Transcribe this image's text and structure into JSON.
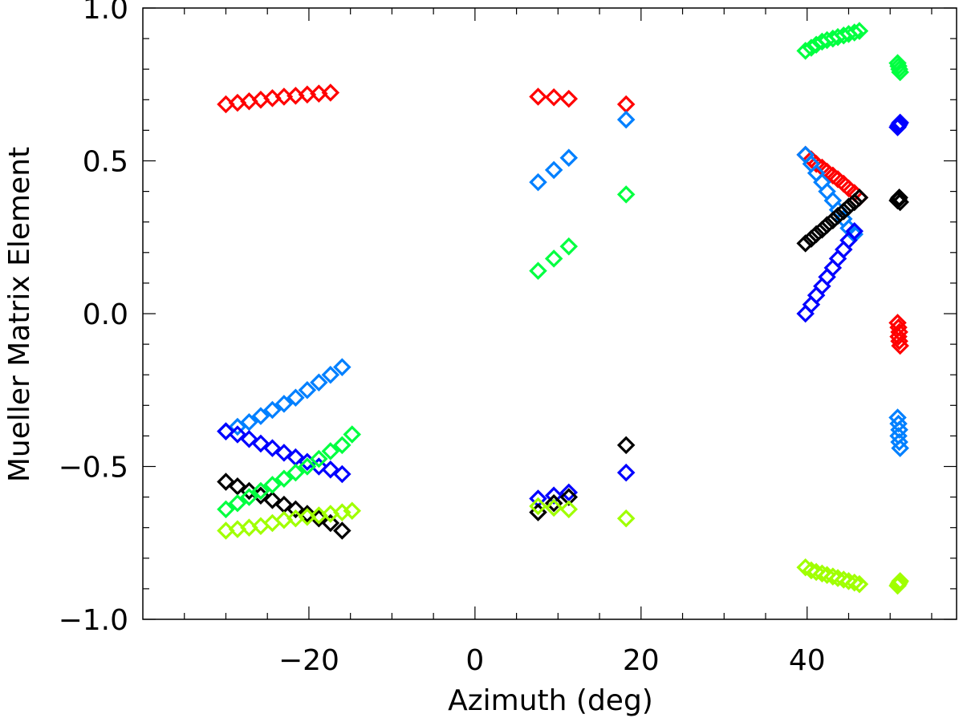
{
  "chart_data": {
    "type": "scatter",
    "title": "",
    "xlabel": "Azimuth (deg)",
    "ylabel": "Mueller Matrix Element",
    "xlim": [
      -40,
      58
    ],
    "ylim": [
      -1.0,
      1.0
    ],
    "x_ticks": [
      -20,
      0,
      20,
      40
    ],
    "x_tick_labels": [
      "−20",
      "0",
      "20",
      "40"
    ],
    "y_ticks": [
      -1.0,
      -0.5,
      0.0,
      0.5,
      1.0
    ],
    "y_tick_labels": [
      "−1.0",
      "−0.5",
      "0.0",
      "0.5",
      "1.0"
    ],
    "marker": "diamond-open",
    "grid": false,
    "legend": "none",
    "series": [
      {
        "color": "#ff0000",
        "points": [
          [
            -30,
            0.685
          ],
          [
            -28.6,
            0.69
          ],
          [
            -27.2,
            0.695
          ],
          [
            -25.8,
            0.7
          ],
          [
            -24.4,
            0.705
          ],
          [
            -23,
            0.71
          ],
          [
            -21.6,
            0.713
          ],
          [
            -20.2,
            0.717
          ],
          [
            -18.8,
            0.72
          ],
          [
            -17.4,
            0.723
          ],
          [
            7.6,
            0.71
          ],
          [
            9.5,
            0.708
          ],
          [
            11.3,
            0.703
          ],
          [
            18.2,
            0.685
          ],
          [
            39.8,
            0.52
          ],
          [
            40.5,
            0.505
          ],
          [
            41.1,
            0.49
          ],
          [
            41.8,
            0.478
          ],
          [
            42.4,
            0.465
          ],
          [
            43.1,
            0.452
          ],
          [
            43.7,
            0.44
          ],
          [
            44.4,
            0.425
          ],
          [
            45.0,
            0.41
          ],
          [
            45.7,
            0.395
          ],
          [
            46.3,
            0.38
          ],
          [
            50.9,
            -0.03
          ],
          [
            51.0,
            -0.045
          ],
          [
            51.1,
            -0.06
          ],
          [
            51.0,
            -0.075
          ],
          [
            51.1,
            -0.09
          ],
          [
            51.2,
            -0.105
          ]
        ]
      },
      {
        "color": "#0080ff",
        "points": [
          [
            -30,
            -0.385
          ],
          [
            -28.6,
            -0.37
          ],
          [
            -27.2,
            -0.355
          ],
          [
            -25.8,
            -0.335
          ],
          [
            -24.4,
            -0.315
          ],
          [
            -23,
            -0.295
          ],
          [
            -21.6,
            -0.275
          ],
          [
            -20.2,
            -0.25
          ],
          [
            -18.8,
            -0.225
          ],
          [
            -17.4,
            -0.2
          ],
          [
            -16,
            -0.175
          ],
          [
            7.6,
            0.43
          ],
          [
            9.5,
            0.47
          ],
          [
            11.3,
            0.51
          ],
          [
            18.2,
            0.635
          ],
          [
            39.8,
            0.52
          ],
          [
            40.5,
            0.49
          ],
          [
            41.1,
            0.46
          ],
          [
            41.8,
            0.43
          ],
          [
            42.4,
            0.4
          ],
          [
            43.1,
            0.37
          ],
          [
            43.7,
            0.34
          ],
          [
            44.4,
            0.31
          ],
          [
            45.0,
            0.28
          ],
          [
            45.7,
            0.26
          ],
          [
            50.9,
            -0.34
          ],
          [
            51.0,
            -0.36
          ],
          [
            51.1,
            -0.38
          ],
          [
            51.0,
            -0.4
          ],
          [
            51.1,
            -0.42
          ],
          [
            51.2,
            -0.44
          ]
        ]
      },
      {
        "color": "#0000ff",
        "points": [
          [
            -30,
            -0.385
          ],
          [
            -28.6,
            -0.395
          ],
          [
            -27.2,
            -0.41
          ],
          [
            -25.8,
            -0.425
          ],
          [
            -24.4,
            -0.44
          ],
          [
            -23,
            -0.455
          ],
          [
            -21.6,
            -0.47
          ],
          [
            -20.2,
            -0.485
          ],
          [
            -18.8,
            -0.5
          ],
          [
            -17.4,
            -0.51
          ],
          [
            -16,
            -0.525
          ],
          [
            7.6,
            -0.605
          ],
          [
            9.5,
            -0.595
          ],
          [
            11.3,
            -0.585
          ],
          [
            18.2,
            -0.52
          ],
          [
            39.8,
            0.0
          ],
          [
            40.5,
            0.03
          ],
          [
            41.1,
            0.06
          ],
          [
            41.8,
            0.09
          ],
          [
            42.4,
            0.12
          ],
          [
            43.1,
            0.15
          ],
          [
            43.7,
            0.18
          ],
          [
            44.4,
            0.21
          ],
          [
            45.0,
            0.24
          ],
          [
            45.7,
            0.27
          ],
          [
            50.9,
            0.61
          ],
          [
            51.0,
            0.615
          ],
          [
            51.1,
            0.62
          ],
          [
            51.2,
            0.625
          ]
        ]
      },
      {
        "color": "#000000",
        "points": [
          [
            -30,
            -0.55
          ],
          [
            -28.6,
            -0.565
          ],
          [
            -27.2,
            -0.58
          ],
          [
            -25.8,
            -0.595
          ],
          [
            -24.4,
            -0.61
          ],
          [
            -23,
            -0.625
          ],
          [
            -21.6,
            -0.64
          ],
          [
            -20.2,
            -0.655
          ],
          [
            -18.8,
            -0.67
          ],
          [
            -17.4,
            -0.685
          ],
          [
            -16,
            -0.71
          ],
          [
            7.6,
            -0.65
          ],
          [
            9.5,
            -0.62
          ],
          [
            11.3,
            -0.6
          ],
          [
            18.2,
            -0.43
          ],
          [
            39.8,
            0.23
          ],
          [
            40.5,
            0.245
          ],
          [
            41.1,
            0.26
          ],
          [
            41.8,
            0.275
          ],
          [
            42.4,
            0.29
          ],
          [
            43.1,
            0.305
          ],
          [
            43.7,
            0.32
          ],
          [
            44.4,
            0.335
          ],
          [
            45.0,
            0.35
          ],
          [
            45.7,
            0.365
          ],
          [
            46.3,
            0.38
          ],
          [
            50.9,
            0.37
          ],
          [
            51.0,
            0.375
          ],
          [
            51.1,
            0.38
          ],
          [
            51.2,
            0.365
          ]
        ]
      },
      {
        "color": "#00ff40",
        "points": [
          [
            -30,
            -0.64
          ],
          [
            -28.6,
            -0.62
          ],
          [
            -27.2,
            -0.6
          ],
          [
            -25.8,
            -0.58
          ],
          [
            -24.4,
            -0.56
          ],
          [
            -23,
            -0.54
          ],
          [
            -21.6,
            -0.52
          ],
          [
            -20.2,
            -0.5
          ],
          [
            -18.8,
            -0.475
          ],
          [
            -17.4,
            -0.45
          ],
          [
            -16,
            -0.43
          ],
          [
            -14.8,
            -0.395
          ],
          [
            7.6,
            0.14
          ],
          [
            9.5,
            0.18
          ],
          [
            11.3,
            0.22
          ],
          [
            18.2,
            0.39
          ],
          [
            39.8,
            0.86
          ],
          [
            40.5,
            0.87
          ],
          [
            41.1,
            0.88
          ],
          [
            41.8,
            0.89
          ],
          [
            42.4,
            0.895
          ],
          [
            43.1,
            0.9
          ],
          [
            43.7,
            0.905
          ],
          [
            44.4,
            0.91
          ],
          [
            45.0,
            0.915
          ],
          [
            45.7,
            0.92
          ],
          [
            46.3,
            0.925
          ],
          [
            50.9,
            0.82
          ],
          [
            51.0,
            0.81
          ],
          [
            51.1,
            0.8
          ],
          [
            51.2,
            0.79
          ]
        ]
      },
      {
        "color": "#a0ff00",
        "points": [
          [
            -30,
            -0.71
          ],
          [
            -28.6,
            -0.705
          ],
          [
            -27.2,
            -0.7
          ],
          [
            -25.8,
            -0.695
          ],
          [
            -24.4,
            -0.685
          ],
          [
            -23,
            -0.675
          ],
          [
            -21.6,
            -0.67
          ],
          [
            -20.2,
            -0.665
          ],
          [
            -18.8,
            -0.66
          ],
          [
            -17.4,
            -0.655
          ],
          [
            -16,
            -0.65
          ],
          [
            -14.8,
            -0.645
          ],
          [
            7.6,
            -0.63
          ],
          [
            9.5,
            -0.635
          ],
          [
            11.3,
            -0.64
          ],
          [
            18.2,
            -0.67
          ],
          [
            39.8,
            -0.83
          ],
          [
            40.5,
            -0.84
          ],
          [
            41.1,
            -0.845
          ],
          [
            41.8,
            -0.85
          ],
          [
            42.4,
            -0.855
          ],
          [
            43.1,
            -0.86
          ],
          [
            43.7,
            -0.865
          ],
          [
            44.4,
            -0.87
          ],
          [
            45.0,
            -0.875
          ],
          [
            45.7,
            -0.88
          ],
          [
            46.3,
            -0.885
          ],
          [
            50.9,
            -0.89
          ],
          [
            51.0,
            -0.885
          ],
          [
            51.1,
            -0.88
          ],
          [
            51.2,
            -0.875
          ]
        ]
      }
    ]
  }
}
